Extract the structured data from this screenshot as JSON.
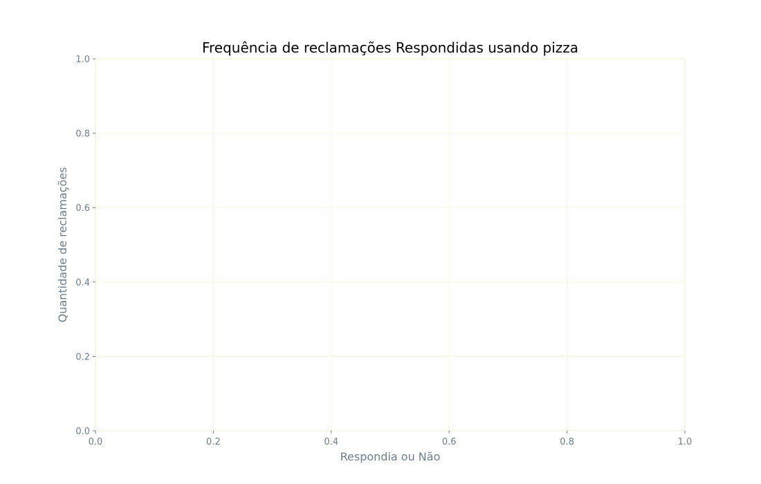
{
  "chart_data": {
    "type": "pie",
    "title": "Frequência de reclamações Respondidas usando pizza",
    "xlabel": "Respondia ou Não",
    "ylabel": "Quantidade de reclamações",
    "xlim": [
      0.0,
      1.0
    ],
    "ylim": [
      0.0,
      1.0
    ],
    "x_ticks": [
      "0.0",
      "0.2",
      "0.4",
      "0.6",
      "0.8",
      "1.0"
    ],
    "y_ticks": [
      "0.0",
      "0.2",
      "0.4",
      "0.6",
      "0.8",
      "1.0"
    ],
    "grid": true,
    "slices": [],
    "colors": {
      "grid": "#f7f7dc",
      "spine": "#efefd0",
      "tick_label": "#6b7f8c",
      "axis_label": "#6b7f8c",
      "title": "#000000"
    }
  }
}
